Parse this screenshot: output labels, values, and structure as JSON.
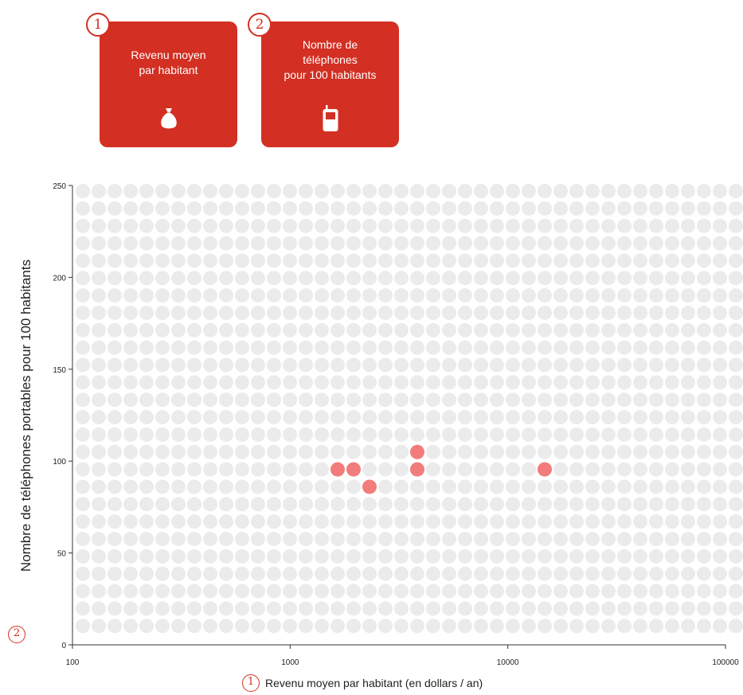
{
  "cards": [
    {
      "number": "1",
      "lines": [
        "Revenu moyen",
        "par habitant"
      ],
      "icon": "money-bag-icon"
    },
    {
      "number": "2",
      "lines": [
        "Nombre de",
        "téléphones",
        "pour 100 habitants"
      ],
      "icon": "mobile-phone-icon"
    }
  ],
  "colors": {
    "card": "#d32f22",
    "grid_dot": "#ebebeb",
    "low": "#f5b6b6",
    "mid": "#f27c7c",
    "high": "#ee2020"
  },
  "chart_data": {
    "type": "scatter",
    "xlabel": "Revenu moyen par habitant (en dollars / an)",
    "xlabel_badge": "1",
    "ylabel": "Nombre de téléphones portables pour 100 habitants",
    "ylabel_badge": "2",
    "x_scale": "log",
    "xlim": [
      100,
      100000
    ],
    "ylim": [
      0,
      250
    ],
    "x_ticks": [
      100,
      1000,
      10000,
      100000
    ],
    "x_tick_labels": [
      "100",
      "1000",
      "10000",
      "100000"
    ],
    "y_ticks": [
      0,
      50,
      100,
      150,
      200,
      250
    ],
    "y_tick_labels": [
      "0",
      "50",
      "100",
      "150",
      "200",
      "250"
    ],
    "grid": true,
    "points": [
      {
        "x": 2236,
        "y": 84,
        "c": 1
      },
      {
        "x": 14100,
        "y": 95,
        "c": 1
      },
      {
        "x": 1995,
        "y": 95,
        "c": 1
      },
      {
        "x": 3548,
        "y": 103,
        "c": 1
      },
      {
        "x": 4000,
        "y": 91,
        "c": 1
      },
      {
        "x": 1585,
        "y": 99,
        "c": 1
      }
    ]
  }
}
